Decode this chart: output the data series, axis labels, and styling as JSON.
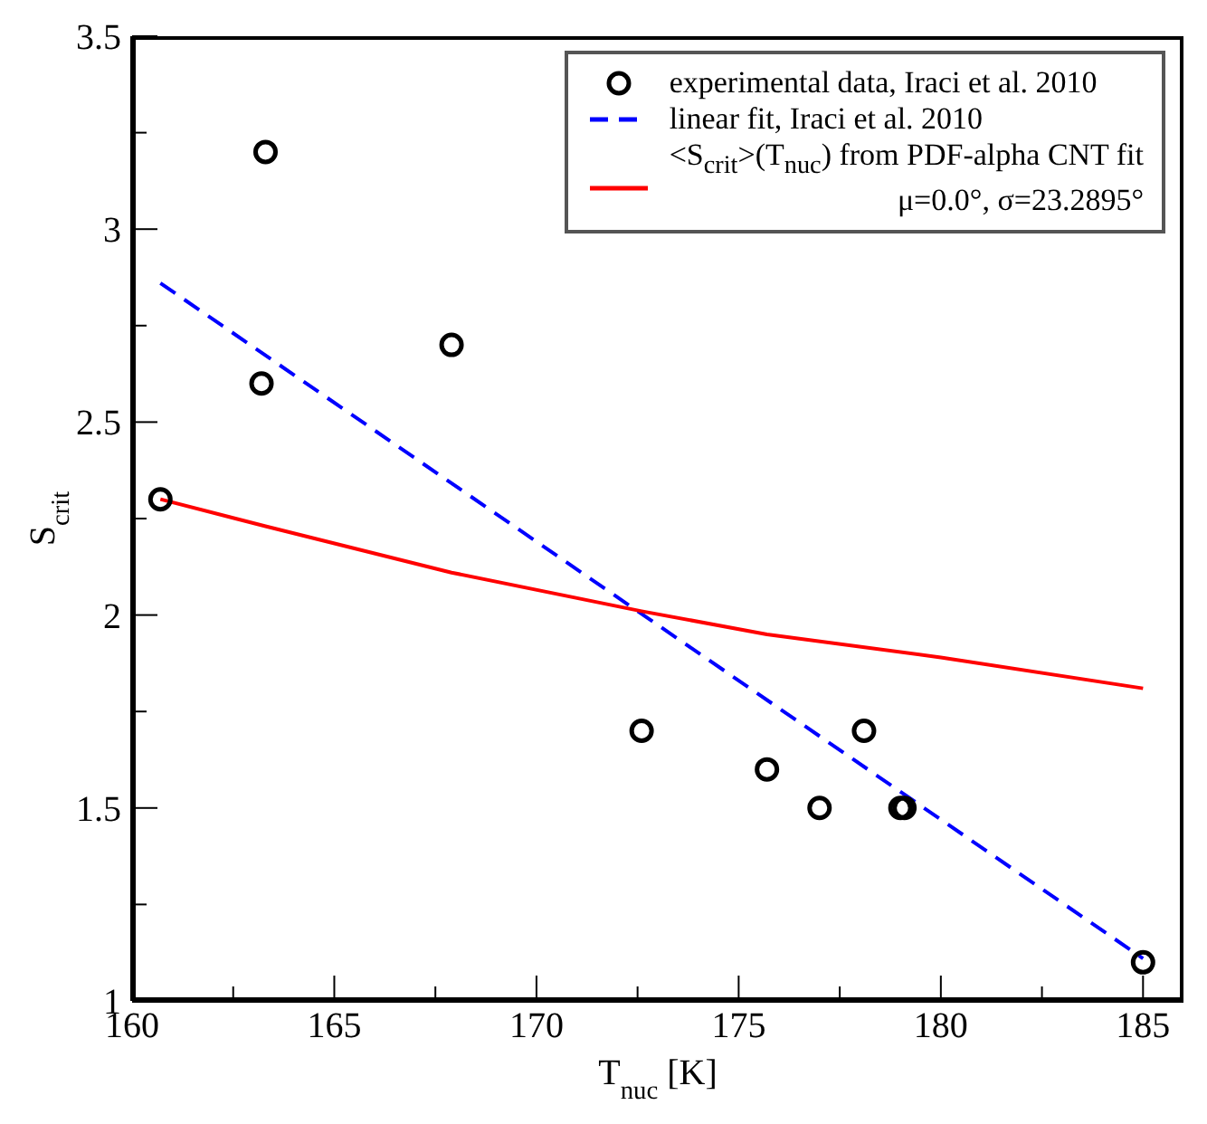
{
  "chart_data": {
    "type": "scatter",
    "xlabel": "T$_{nuc}$ [K]",
    "ylabel": "S$_{crit}$",
    "xlim": [
      160,
      186
    ],
    "ylim": [
      1,
      3.5
    ],
    "xticks": [
      160,
      {
        "value": 162.5,
        "label": null
      },
      165,
      {
        "value": 167.5,
        "label": null
      },
      170,
      {
        "value": 172.5,
        "label": null
      },
      175,
      {
        "value": 177.5,
        "label": null
      },
      180,
      {
        "value": 182.5,
        "label": null
      },
      185
    ],
    "yticks": [
      1,
      {
        "value": 1.25,
        "label": null
      },
      1.5,
      {
        "value": 1.75,
        "label": null
      },
      2,
      {
        "value": 2.25,
        "label": null
      },
      2.5,
      {
        "value": 2.75,
        "label": null
      },
      3,
      {
        "value": 3.25,
        "label": null
      },
      3.5
    ],
    "grid": false,
    "legend": "top right",
    "series": [
      {
        "name": "experimental data, Iraci et al. 2010",
        "marker": "circle",
        "color": "#000000",
        "x": [
          160.7,
          163.2,
          163.3,
          167.9,
          172.6,
          175.7,
          177.0,
          178.1,
          179.0,
          179.1,
          185.0
        ],
        "values": [
          2.3,
          2.6,
          3.2,
          2.7,
          1.7,
          1.6,
          1.5,
          1.7,
          1.5,
          1.5,
          1.1
        ]
      },
      {
        "name": "linear fit, Iraci et al. 2010",
        "type": "line",
        "marker": "none",
        "line_style": "dashed",
        "color": "#0000ff",
        "x": [
          160.7,
          185.0
        ],
        "values": [
          2.86,
          1.11
        ]
      },
      {
        "name": "<S$_{crit}$>(T$_{nuc}$) from PDF-alpha CNT fit\nμ=0.0°, σ=23.2895°",
        "type": "line",
        "marker": "none",
        "line_style": "solid",
        "color": "#ff0000",
        "x": [
          160.7,
          163.3,
          167.9,
          172.6,
          175.7,
          180.0,
          185.0
        ],
        "values": [
          2.3,
          2.23,
          2.11,
          2.01,
          1.95,
          1.89,
          1.81
        ]
      }
    ]
  }
}
